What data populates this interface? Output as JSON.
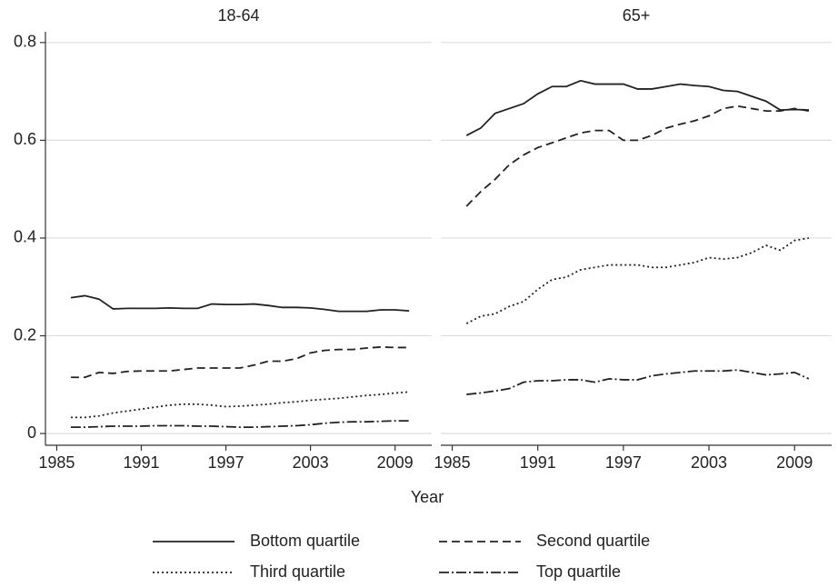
{
  "chart_data": [
    {
      "type": "line",
      "title": "18-64",
      "xlabel": "Year",
      "x": [
        1986,
        1987,
        1988,
        1989,
        1990,
        1991,
        1992,
        1993,
        1994,
        1995,
        1996,
        1997,
        1998,
        1999,
        2000,
        2001,
        2002,
        2003,
        2004,
        2005,
        2006,
        2007,
        2008,
        2009,
        2010
      ],
      "xlim": [
        1984.2,
        2011.6
      ],
      "xticks": [
        1985,
        1991,
        1997,
        2003,
        2009
      ],
      "ylim": [
        -0.024,
        0.822
      ],
      "yticks": [
        0,
        0.2,
        0.4,
        0.6,
        0.8
      ],
      "grid": true,
      "series": [
        {
          "name": "Bottom quartile",
          "color": "#222",
          "dash": "none",
          "values": [
            0.278,
            0.282,
            0.275,
            0.255,
            0.256,
            0.256,
            0.256,
            0.257,
            0.256,
            0.256,
            0.265,
            0.264,
            0.264,
            0.265,
            0.262,
            0.258,
            0.258,
            0.257,
            0.254,
            0.25,
            0.25,
            0.25,
            0.253,
            0.253,
            0.251
          ]
        },
        {
          "name": "Second quartile",
          "color": "#222",
          "dash": "9,5",
          "values": [
            0.115,
            0.115,
            0.125,
            0.123,
            0.127,
            0.128,
            0.128,
            0.128,
            0.131,
            0.134,
            0.134,
            0.134,
            0.134,
            0.14,
            0.148,
            0.148,
            0.153,
            0.165,
            0.17,
            0.172,
            0.172,
            0.175,
            0.177,
            0.176,
            0.176
          ]
        },
        {
          "name": "Third quartile",
          "color": "#222",
          "dash": "2,3",
          "values": [
            0.033,
            0.033,
            0.036,
            0.042,
            0.046,
            0.05,
            0.054,
            0.058,
            0.06,
            0.06,
            0.058,
            0.055,
            0.056,
            0.058,
            0.06,
            0.063,
            0.065,
            0.068,
            0.07,
            0.072,
            0.075,
            0.078,
            0.08,
            0.083,
            0.085
          ]
        },
        {
          "name": "Top quartile",
          "color": "#222",
          "dash": "11,3,2,3",
          "values": [
            0.013,
            0.013,
            0.014,
            0.015,
            0.015,
            0.015,
            0.016,
            0.016,
            0.016,
            0.015,
            0.015,
            0.014,
            0.013,
            0.013,
            0.014,
            0.015,
            0.016,
            0.018,
            0.021,
            0.023,
            0.024,
            0.024,
            0.025,
            0.026,
            0.026
          ]
        }
      ]
    },
    {
      "type": "line",
      "title": "65+",
      "x": [
        1986,
        1987,
        1988,
        1989,
        1990,
        1991,
        1992,
        1993,
        1994,
        1995,
        1996,
        1997,
        1998,
        1999,
        2000,
        2001,
        2002,
        2003,
        2004,
        2005,
        2006,
        2007,
        2008,
        2009,
        2010
      ],
      "xlim": [
        1984.2,
        2011.6
      ],
      "xticks": [
        1985,
        1991,
        1997,
        2003,
        2009
      ],
      "ylim": [
        -0.024,
        0.822
      ],
      "yticks": [
        0,
        0.2,
        0.4,
        0.6,
        0.8
      ],
      "grid": true,
      "series": [
        {
          "color": "#222",
          "dash": "none",
          "values": [
            0.61,
            0.625,
            0.655,
            0.665,
            0.675,
            0.695,
            0.71,
            0.71,
            0.722,
            0.715,
            0.715,
            0.715,
            0.705,
            0.705,
            0.71,
            0.715,
            0.712,
            0.71,
            0.702,
            0.7,
            0.69,
            0.68,
            0.662,
            0.663,
            0.662
          ]
        },
        {
          "color": "#222",
          "dash": "9,5",
          "values": [
            0.465,
            0.495,
            0.52,
            0.55,
            0.57,
            0.585,
            0.595,
            0.605,
            0.615,
            0.62,
            0.62,
            0.6,
            0.6,
            0.61,
            0.625,
            0.633,
            0.64,
            0.65,
            0.665,
            0.67,
            0.665,
            0.66,
            0.66,
            0.665,
            0.66
          ]
        },
        {
          "color": "#222",
          "dash": "2,3",
          "values": [
            0.225,
            0.24,
            0.245,
            0.26,
            0.27,
            0.295,
            0.315,
            0.32,
            0.335,
            0.34,
            0.345,
            0.345,
            0.345,
            0.34,
            0.34,
            0.345,
            0.35,
            0.36,
            0.357,
            0.36,
            0.37,
            0.385,
            0.375,
            0.395,
            0.4
          ]
        },
        {
          "color": "#222",
          "dash": "11,3,2,3",
          "values": [
            0.08,
            0.083,
            0.087,
            0.092,
            0.105,
            0.108,
            0.108,
            0.11,
            0.11,
            0.105,
            0.112,
            0.11,
            0.11,
            0.118,
            0.122,
            0.125,
            0.128,
            0.128,
            0.128,
            0.13,
            0.125,
            0.12,
            0.122,
            0.125,
            0.112
          ]
        }
      ]
    }
  ]
}
